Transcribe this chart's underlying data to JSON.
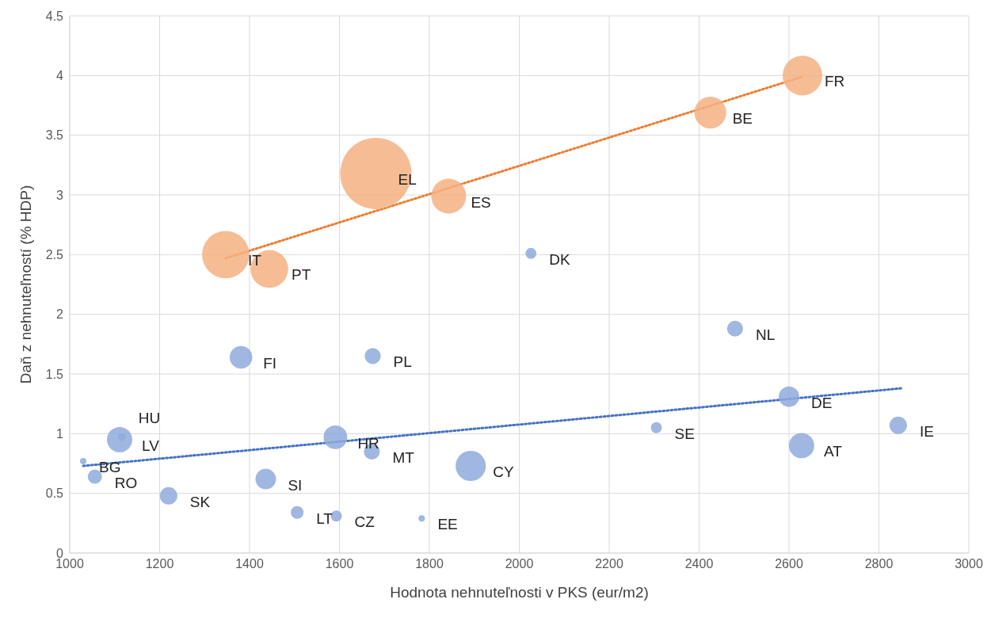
{
  "chart_data": {
    "type": "bubble",
    "xlabel": "Hodnota nehnuteľnosti v PKS (eur/m2)",
    "ylabel": "Daň z nehnuteľností (% HDP)",
    "xlim": [
      1000,
      3000
    ],
    "xticks": [
      1000,
      1200,
      1400,
      1600,
      1800,
      2000,
      2200,
      2400,
      2600,
      2800,
      3000
    ],
    "ylim": [
      0,
      4.5
    ],
    "yticks": [
      0,
      0.5,
      1,
      1.5,
      2,
      2.5,
      3,
      3.5,
      4,
      4.5
    ],
    "grid": true,
    "legend": false,
    "line_style": "dotted",
    "series": [
      {
        "color": "#f4b183",
        "x": [
          2630,
          2425,
          1681,
          1843,
          1347,
          1444
        ],
        "values": [
          4.0,
          3.69,
          3.18,
          2.99,
          2.5,
          2.38
        ],
        "sizes": [
          0.31,
          0.2,
          1,
          0.24,
          0.44,
          0.28
        ]
      },
      {
        "color": "#8faadc",
        "x": [
          2026,
          2480,
          1381,
          1674,
          2600,
          2843,
          2305,
          1116,
          1111,
          1591,
          1672,
          2628,
          1892,
          1030,
          1056,
          1436,
          1220,
          1506,
          1593,
          1783
        ],
        "values": [
          2.51,
          1.88,
          1.64,
          1.65,
          1.31,
          1.07,
          1.05,
          0.97,
          0.95,
          0.97,
          0.85,
          0.9,
          0.73,
          0.77,
          0.64,
          0.62,
          0.48,
          0.34,
          0.31,
          0.29
        ],
        "sizes": [
          0.024,
          0.05,
          0.1,
          0.05,
          0.083,
          0.06,
          0.024,
          0.012,
          0.126,
          0.11,
          0.05,
          0.126,
          0.18,
          0.008,
          0.04,
          0.083,
          0.06,
          0.032,
          0.024,
          0.008
        ]
      },
      {
        "type": "line",
        "color": "#ed7d31",
        "x": [
          1347,
          2630
        ],
        "values": [
          2.47,
          3.99
        ]
      },
      {
        "type": "line",
        "color": "#4472c4",
        "x": [
          1030,
          2850
        ],
        "values": [
          0.73,
          1.38
        ]
      }
    ],
    "annotations": [
      {
        "text": "FR",
        "x": 2630,
        "y": 4.0
      },
      {
        "text": "BE",
        "x": 2425,
        "y": 3.69
      },
      {
        "text": "EL",
        "x": 1681,
        "y": 3.18
      },
      {
        "text": "ES",
        "x": 1843,
        "y": 2.99
      },
      {
        "text": "IT",
        "x": 1347,
        "y": 2.5
      },
      {
        "text": "PT",
        "x": 1444,
        "y": 2.38
      },
      {
        "text": "DK",
        "x": 2026,
        "y": 2.51
      },
      {
        "text": "NL",
        "x": 2480,
        "y": 1.88
      },
      {
        "text": "FI",
        "x": 1381,
        "y": 1.64
      },
      {
        "text": "PL",
        "x": 1674,
        "y": 1.65
      },
      {
        "text": "DE",
        "x": 2600,
        "y": 1.31
      },
      {
        "text": "IE",
        "x": 2843,
        "y": 1.07
      },
      {
        "text": "SE",
        "x": 2305,
        "y": 1.05
      },
      {
        "text": "HU",
        "x": 1116,
        "y": 0.97
      },
      {
        "text": "LV",
        "x": 1111,
        "y": 0.95
      },
      {
        "text": "HR",
        "x": 1591,
        "y": 0.97
      },
      {
        "text": "MT",
        "x": 1672,
        "y": 0.85
      },
      {
        "text": "AT",
        "x": 2628,
        "y": 0.9
      },
      {
        "text": "CY",
        "x": 1892,
        "y": 0.73
      },
      {
        "text": "BG",
        "x": 1030,
        "y": 0.77
      },
      {
        "text": "RO",
        "x": 1056,
        "y": 0.64
      },
      {
        "text": "SI",
        "x": 1436,
        "y": 0.62
      },
      {
        "text": "SK",
        "x": 1220,
        "y": 0.48
      },
      {
        "text": "LT",
        "x": 1506,
        "y": 0.34
      },
      {
        "text": "CZ",
        "x": 1593,
        "y": 0.31
      },
      {
        "text": "EE",
        "x": 1783,
        "y": 0.29
      }
    ]
  }
}
